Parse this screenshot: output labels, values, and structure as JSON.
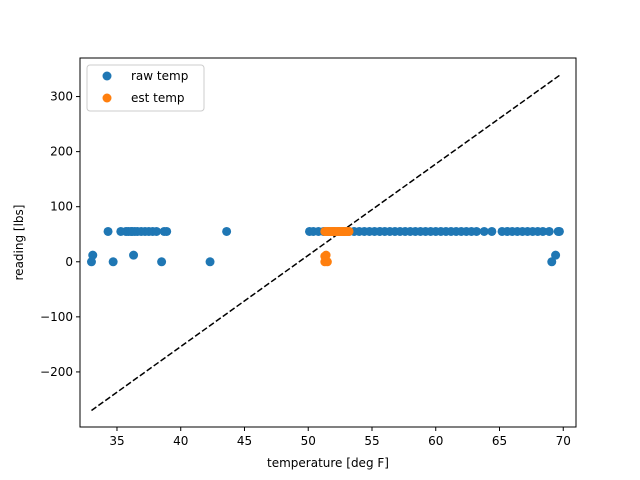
{
  "chart_data": {
    "type": "scatter",
    "xlabel": "temperature [deg F]",
    "ylabel": "reading [lbs]",
    "xlim": [
      32.1,
      71.0
    ],
    "ylim": [
      -300,
      370
    ],
    "xticks": [
      35,
      40,
      45,
      50,
      55,
      60,
      65,
      70
    ],
    "yticks": [
      -200,
      -100,
      0,
      100,
      200,
      300
    ],
    "xtick_labels": [
      "35",
      "40",
      "45",
      "50",
      "55",
      "60",
      "65",
      "70"
    ],
    "ytick_labels": [
      "−200",
      "−100",
      "0",
      "100",
      "200",
      "300"
    ],
    "grid": false,
    "legend_position": "upper-left",
    "series": [
      {
        "name": "raw temp",
        "color": "#1f77b4",
        "marker": "circle",
        "x": [
          33.0,
          33.1,
          34.3,
          34.7,
          35.3,
          35.7,
          35.9,
          36.1,
          36.2,
          36.3,
          36.4,
          36.6,
          36.9,
          37.2,
          37.5,
          37.8,
          38.1,
          38.5,
          38.7,
          38.9,
          42.3,
          43.6,
          50.1,
          50.4,
          50.8,
          51.2,
          51.6,
          52.0,
          52.4,
          52.8,
          53.2,
          53.6,
          54.0,
          54.4,
          54.8,
          55.2,
          55.6,
          56.0,
          56.4,
          56.8,
          57.2,
          57.6,
          58.0,
          58.4,
          58.8,
          59.2,
          59.6,
          60.0,
          60.4,
          60.8,
          61.2,
          61.6,
          62.0,
          62.4,
          62.8,
          63.2,
          63.8,
          64.4,
          65.2,
          65.6,
          66.0,
          66.4,
          66.8,
          67.2,
          67.6,
          68.0,
          68.4,
          68.9,
          69.1,
          69.4,
          69.6,
          69.7
        ],
        "y": [
          0,
          12,
          55,
          0,
          55,
          55,
          55,
          55,
          55,
          12,
          55,
          55,
          55,
          55,
          55,
          55,
          55,
          0,
          55,
          55,
          0,
          55,
          55,
          55,
          55,
          55,
          55,
          55,
          55,
          55,
          55,
          55,
          55,
          55,
          55,
          55,
          55,
          55,
          55,
          55,
          55,
          55,
          55,
          55,
          55,
          55,
          55,
          55,
          55,
          55,
          55,
          55,
          55,
          55,
          55,
          55,
          55,
          55,
          55,
          55,
          55,
          55,
          55,
          55,
          55,
          55,
          55,
          55,
          0,
          12,
          55,
          55
        ]
      },
      {
        "name": "est temp",
        "color": "#ff7f0e",
        "marker": "circle",
        "x": [
          51.3,
          51.4,
          51.5,
          51.6,
          51.7,
          51.8,
          51.9,
          52.0,
          52.1,
          52.2,
          52.3,
          52.4,
          52.5,
          52.6,
          52.7,
          52.8,
          52.9,
          53.0,
          53.1,
          53.2,
          51.3,
          51.5,
          51.3,
          51.4
        ],
        "y": [
          55,
          55,
          55,
          55,
          55,
          55,
          55,
          55,
          55,
          55,
          55,
          55,
          55,
          55,
          55,
          55,
          55,
          55,
          55,
          55,
          0,
          0,
          10,
          12
        ]
      }
    ],
    "reference_line": {
      "style": "dashed",
      "color": "#000000",
      "x": [
        33.0,
        69.8
      ],
      "y": [
        -270,
        340
      ]
    }
  }
}
